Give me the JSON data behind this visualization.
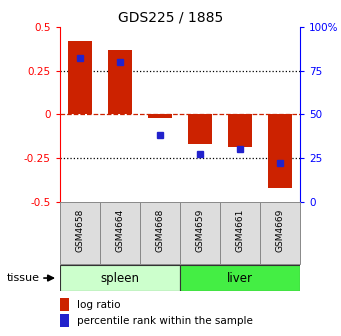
{
  "title": "GDS225 / 1885",
  "samples": [
    "GSM4658",
    "GSM4664",
    "GSM4668",
    "GSM4659",
    "GSM4661",
    "GSM4669"
  ],
  "log_ratios": [
    0.42,
    0.37,
    -0.02,
    -0.17,
    -0.19,
    -0.42
  ],
  "percentile_ranks": [
    82,
    80,
    38,
    27,
    30,
    22
  ],
  "tissue_groups": [
    {
      "label": "spleen",
      "start": 0,
      "end": 3,
      "color": "#ccffcc"
    },
    {
      "label": "liver",
      "start": 3,
      "end": 6,
      "color": "#44ee44"
    }
  ],
  "ylim_left": [
    -0.5,
    0.5
  ],
  "ylim_right": [
    0,
    100
  ],
  "bar_color": "#cc2200",
  "dot_color": "#2222cc",
  "hline_zero_color": "#cc2200",
  "hline_quarter_color": "#000000",
  "background_color": "#ffffff",
  "tissue_label": "tissue",
  "legend_log_ratio": "log ratio",
  "legend_percentile": "percentile rank within the sample",
  "left_yticks": [
    -0.5,
    -0.25,
    0,
    0.25,
    0.5
  ],
  "right_yticks": [
    0,
    25,
    50,
    75,
    100
  ]
}
